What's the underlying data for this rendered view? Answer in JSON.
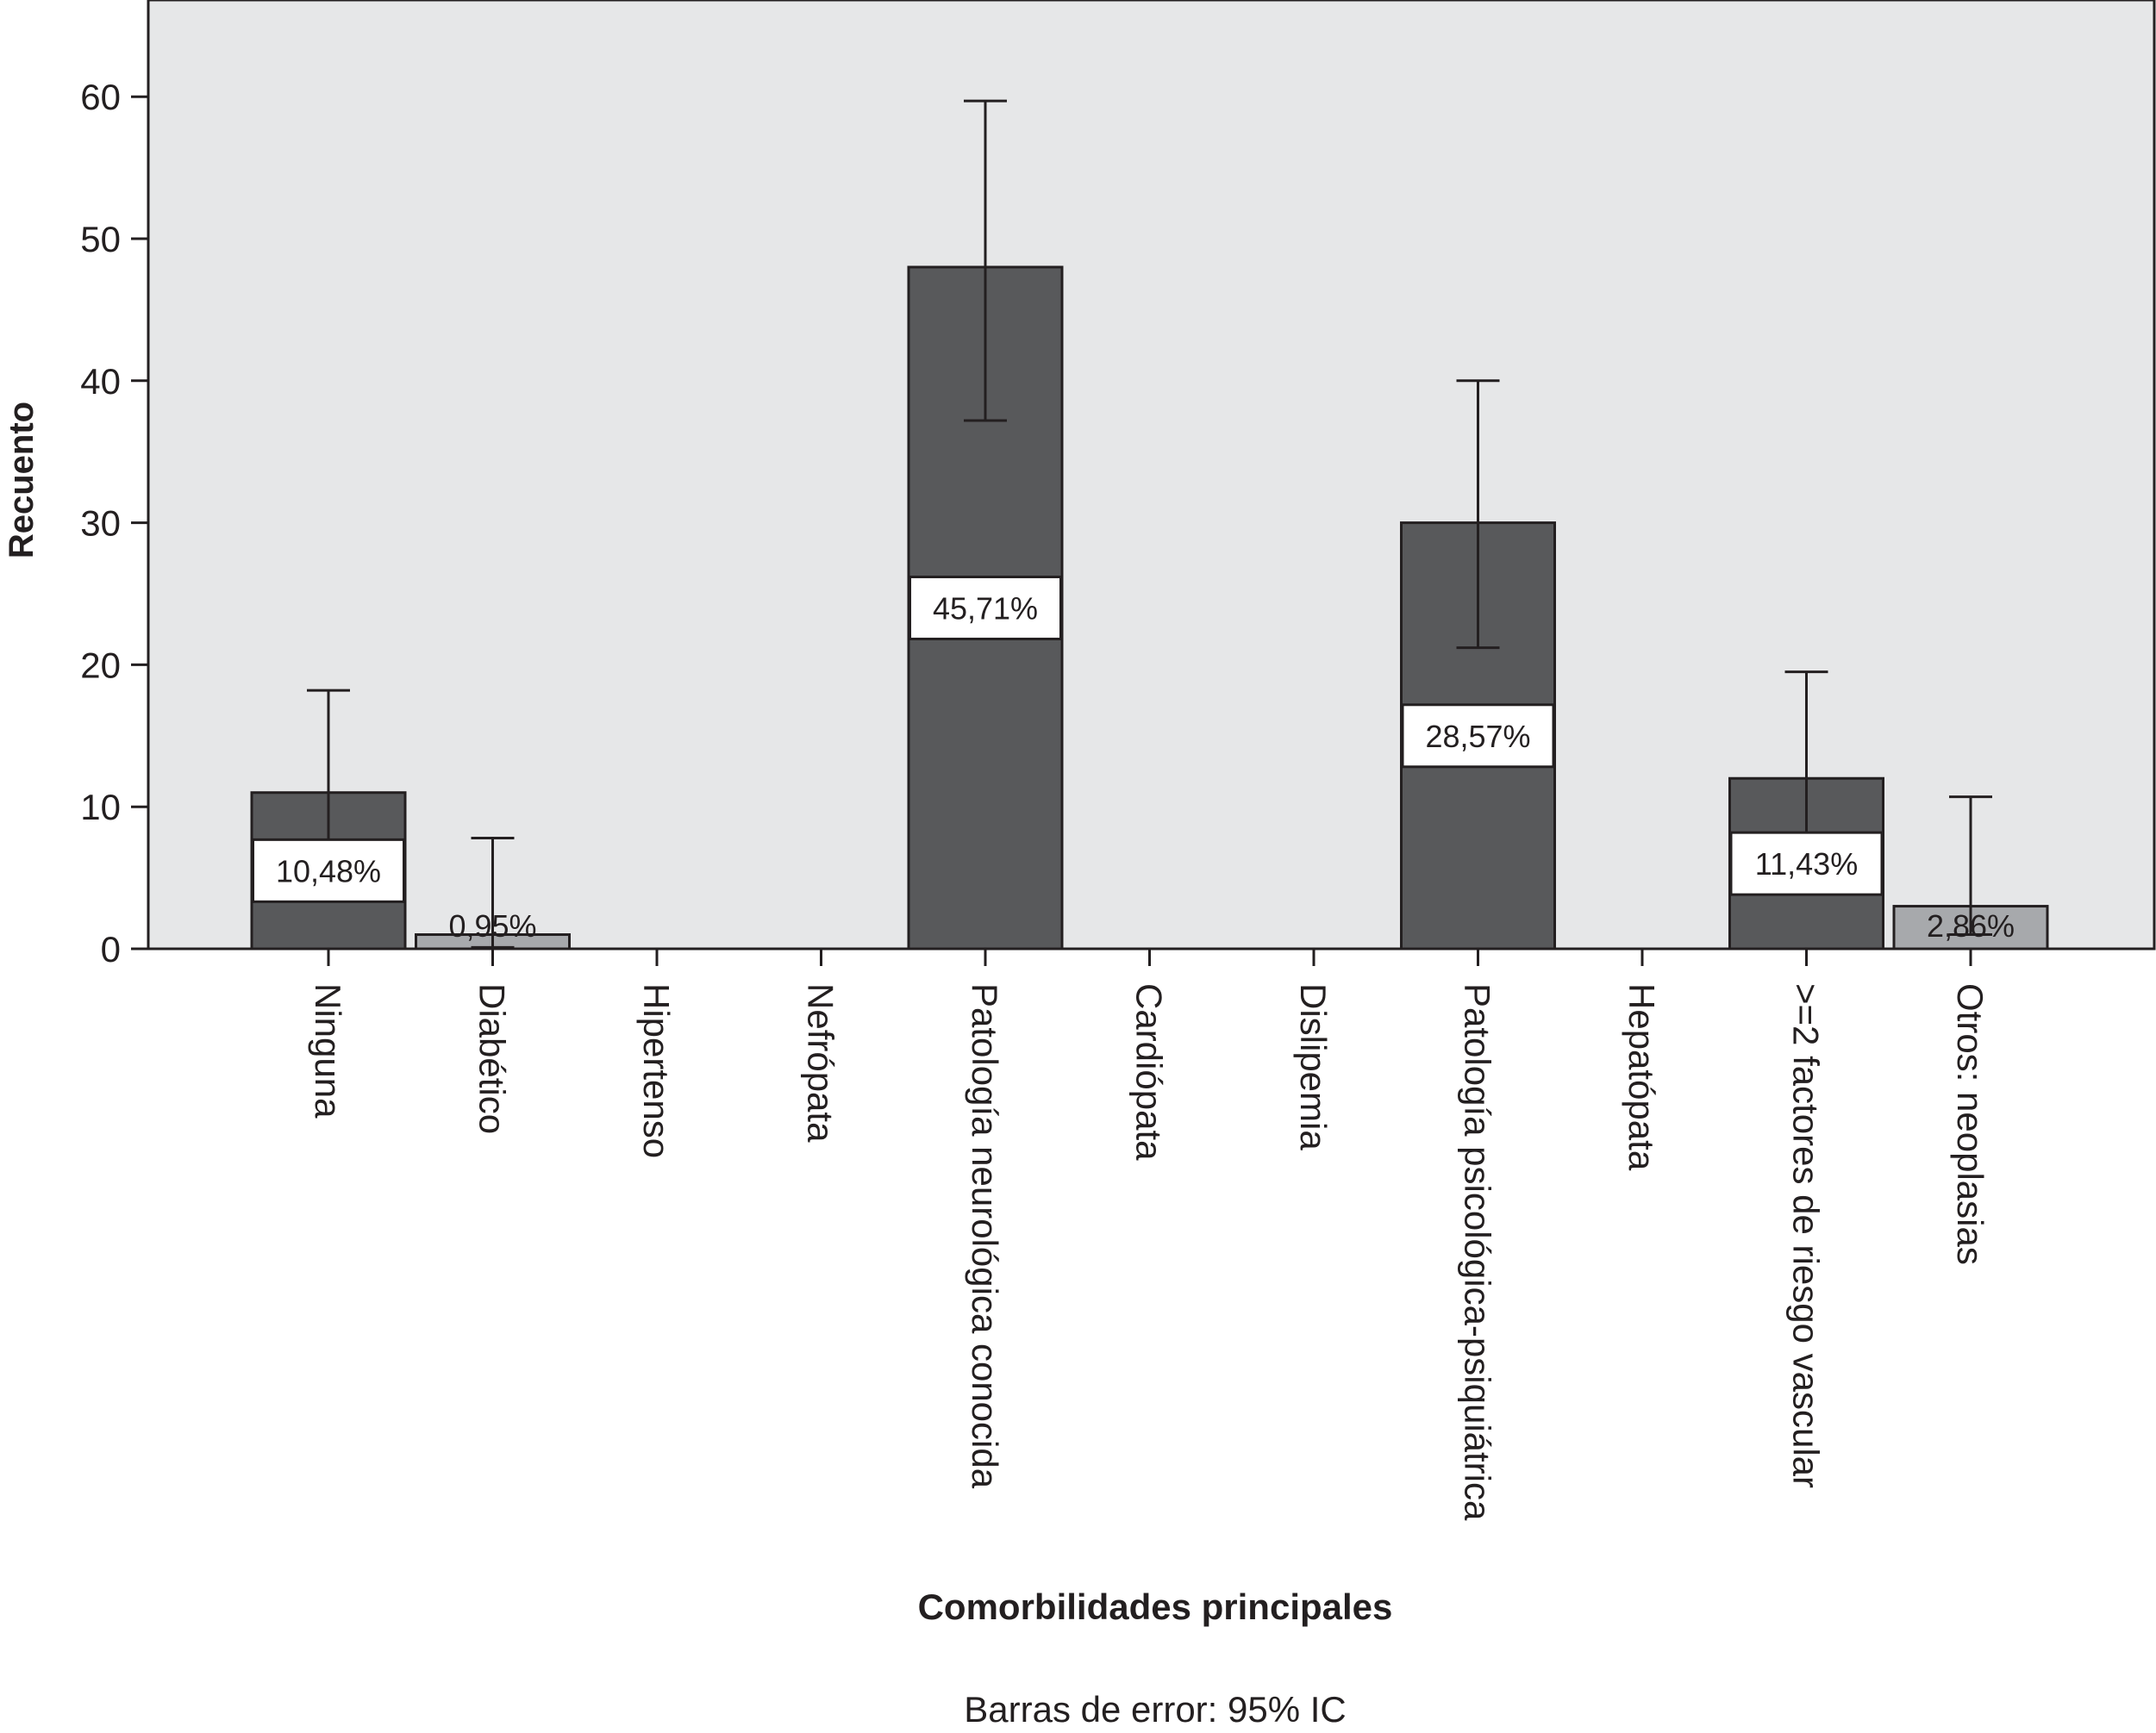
{
  "chart_data": {
    "type": "bar",
    "title": "",
    "xlabel": "Comorbilidades principales",
    "ylabel": "Recuento",
    "footnote": "Barras de error: 95% IC",
    "ylim": [
      0,
      65
    ],
    "yticks": [
      0,
      10,
      20,
      30,
      40,
      50,
      60
    ],
    "grid": false,
    "categories": [
      "Ninguna",
      "Diabético",
      "Hipertenso",
      "Nefrópata",
      "Patología neurológica conocida",
      "Cardiópata",
      "Dislipemia",
      "Patología psicológica-psiquiátrica",
      "Hepatópata",
      ">=2 factores de riesgo vascular",
      "Otros: neoplasias"
    ],
    "values": [
      11,
      1,
      0,
      0,
      48,
      0,
      0,
      30,
      0,
      12,
      3
    ],
    "error_low": [
      3.7,
      0.1,
      null,
      null,
      37.2,
      null,
      null,
      21.2,
      null,
      7.0,
      1.0
    ],
    "error_high": [
      18.2,
      7.8,
      null,
      null,
      59.7,
      null,
      null,
      40.0,
      null,
      19.5,
      10.7
    ],
    "data_labels": [
      "10,48%",
      "0,95%",
      "",
      "",
      "45,71%",
      "",
      "",
      "28,57%",
      "",
      "11,43%",
      "2,86%"
    ],
    "colors": {
      "plot_background": "#e6e7e8",
      "bar_dark": "#58595b",
      "bar_light": "#a7a9ac",
      "stroke": "#231f20",
      "label_box": "#ffffff"
    },
    "bar_shades": [
      "dark",
      "light",
      "",
      "",
      "dark",
      "",
      "",
      "dark",
      "",
      "dark",
      "light"
    ]
  }
}
